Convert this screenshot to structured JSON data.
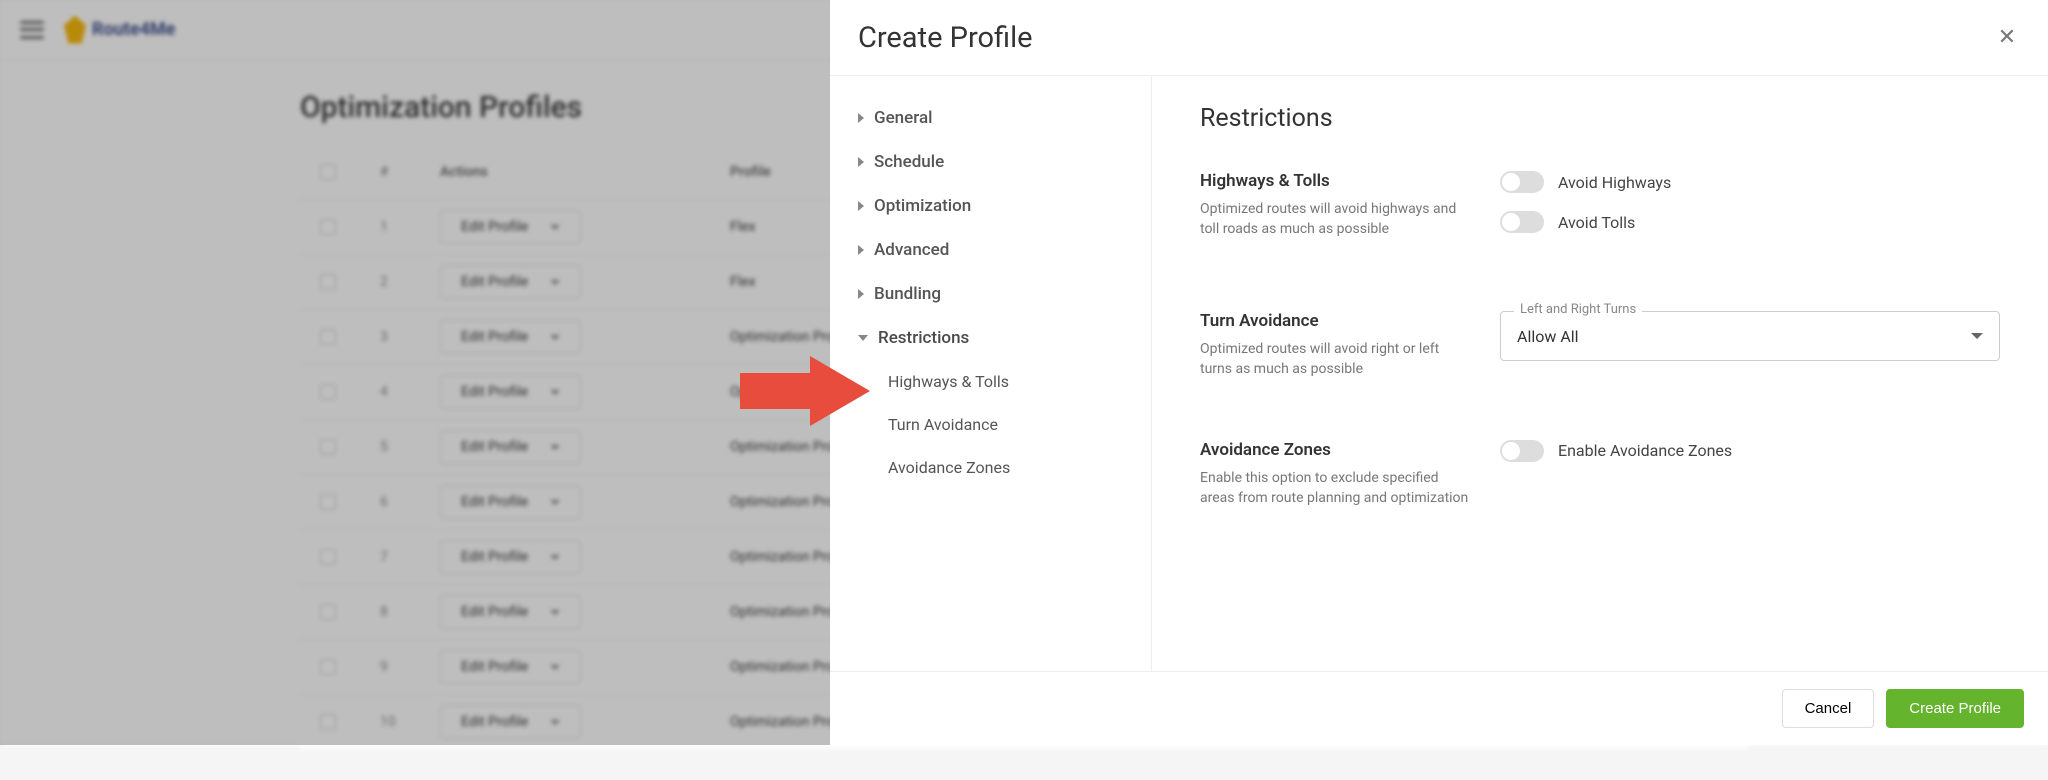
{
  "logo_text": "Route4Me",
  "page_title": "Optimization Profiles",
  "table": {
    "headers": {
      "num": "#",
      "actions": "Actions",
      "profile": "Profile"
    },
    "edit_label": "Edit Profile",
    "rows": [
      {
        "num": "1",
        "profile": "Flex"
      },
      {
        "num": "2",
        "profile": "Flex"
      },
      {
        "num": "3",
        "profile": "Optimization Profile"
      },
      {
        "num": "4",
        "profile": "Optimization Profile"
      },
      {
        "num": "5",
        "profile": "Optimization Profile"
      },
      {
        "num": "6",
        "profile": "Optimization Profile"
      },
      {
        "num": "7",
        "profile": "Optimization Profile"
      },
      {
        "num": "8",
        "profile": "Optimization Profile"
      },
      {
        "num": "9",
        "profile": "Optimization Profile"
      },
      {
        "num": "10",
        "profile": "Optimization Profile"
      }
    ]
  },
  "modal": {
    "title": "Create Profile",
    "nav": {
      "general": "General",
      "schedule": "Schedule",
      "optimization": "Optimization",
      "advanced": "Advanced",
      "bundling": "Bundling",
      "restrictions": "Restrictions",
      "sub_highways": "Highways & Tolls",
      "sub_turn": "Turn Avoidance",
      "sub_zones": "Avoidance Zones"
    },
    "content_title": "Restrictions",
    "highways": {
      "heading": "Highways & Tolls",
      "desc": "Optimized routes will avoid highways and toll roads as much as possible",
      "toggle1": "Avoid Highways",
      "toggle2": "Avoid Tolls"
    },
    "turn": {
      "heading": "Turn Avoidance",
      "desc": "Optimized routes will avoid right or left turns as much as possible",
      "select_label": "Left and Right Turns",
      "select_value": "Allow All"
    },
    "zones": {
      "heading": "Avoidance Zones",
      "desc": "Enable this option to exclude specified areas from route planning and optimization",
      "toggle": "Enable Avoidance Zones"
    },
    "cancel": "Cancel",
    "create": "Create Profile"
  },
  "colors": {
    "primary": "#64b42d",
    "arrow": "#e74c3c"
  }
}
